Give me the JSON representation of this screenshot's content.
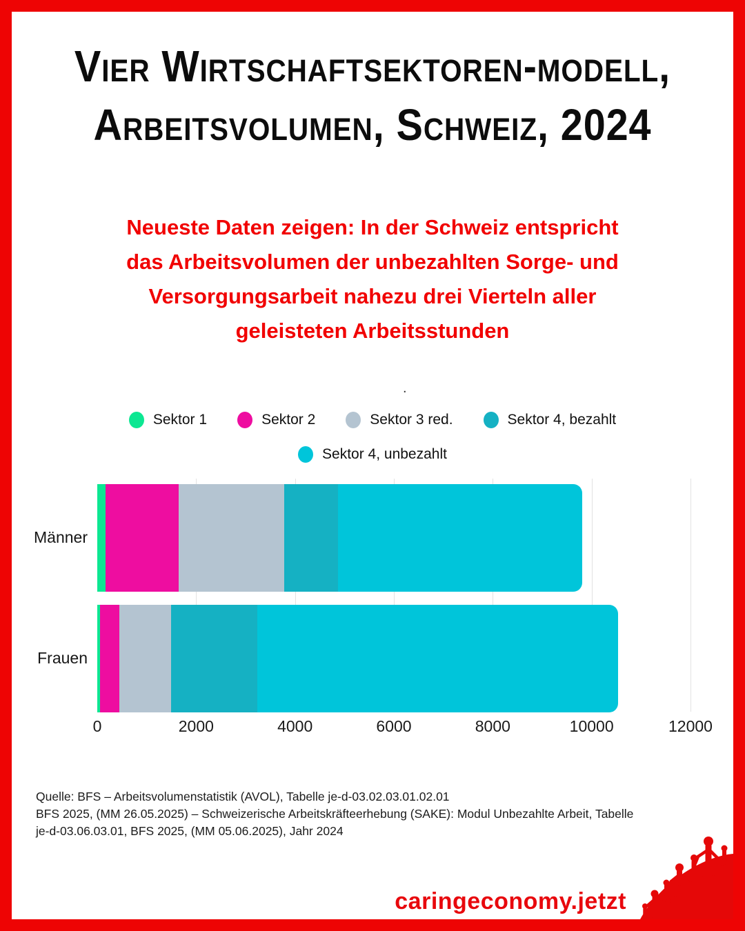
{
  "page": {
    "border_color": "#ee0404",
    "background": "#ffffff"
  },
  "title": {
    "line1": "Vier Wirtschaftsektoren-modell,",
    "line2": "Arbeitsvolumen, Schweiz, 2024"
  },
  "subtitle": {
    "text": "Neueste Daten zeigen: In der Schweiz entspricht\ndas Arbeitsvolumen der unbezahlten Sorge- und\nVersorgungsarbeit nahezu drei Vierteln aller\ngeleisteten Arbeitsstunden",
    "color": "#f10000"
  },
  "stray_mark": ".",
  "chart_data": {
    "type": "bar",
    "orientation": "horizontal",
    "stacked": true,
    "title": "",
    "xlabel": "",
    "ylabel": "",
    "categories": [
      "Männer",
      "Frauen"
    ],
    "series": [
      {
        "name": "Sektor 1",
        "color": "#0ce792",
        "values": [
          170,
          60
        ]
      },
      {
        "name": "Sektor 2",
        "color": "#ee0da0",
        "values": [
          1470,
          380
        ]
      },
      {
        "name": "Sektor 3 red.",
        "color": "#b4c4d1",
        "values": [
          2140,
          1060
        ]
      },
      {
        "name": "Sektor 4, bezahlt",
        "color": "#15b1c3",
        "values": [
          1090,
          1740
        ]
      },
      {
        "name": "Sektor 4, unbezahlt",
        "color": "#00c5da",
        "values": [
          4940,
          7300
        ]
      }
    ],
    "totals": [
      9810,
      10540
    ],
    "x_ticks": [
      0,
      2000,
      4000,
      6000,
      8000,
      10000,
      12000
    ],
    "xlim": [
      0,
      12000
    ],
    "grid": true,
    "legend_position": "top",
    "legend_rows": [
      [
        "Sektor 1",
        "Sektor 2",
        "Sektor 3 red.",
        "Sektor 4, bezahlt"
      ],
      [
        "Sektor 4, unbezahlt"
      ]
    ]
  },
  "source": {
    "text": "Quelle: BFS – Arbeitsvolumenstatistik (AVOL), Tabelle je-d-03.02.03.01.02.01\nBFS 2025, (MM 26.05.2025) – Schweizerische Arbeitskräfteerhebung (SAKE): Modul Unbezahlte Arbeit, Tabelle\nje-d-03.06.03.01, BFS 2025, (MM 05.06.2025), Jahr 2024"
  },
  "footer": {
    "website": "caringeconomy.jetzt",
    "color": "#e8080d",
    "logo": "people-on-hill"
  }
}
